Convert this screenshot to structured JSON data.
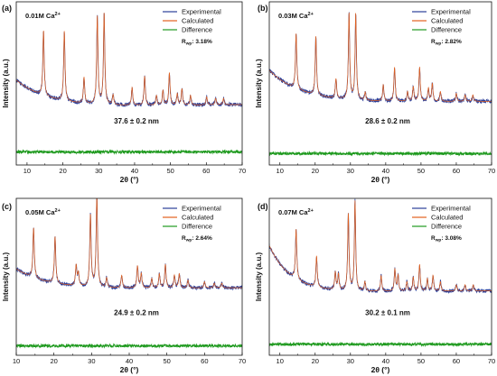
{
  "colors": {
    "experimental": "#2c3f99",
    "calculated": "#e2621f",
    "difference": "#1f9a1f",
    "axis": "#111111"
  },
  "chart_data": [
    {
      "type": "line",
      "panel": "(a)",
      "concentration": "0.01M Ca",
      "concentration_sup": "2+",
      "rwp_label": "R",
      "rwp_sub": "wp",
      "rwp_value": ": 3.18%",
      "size_label": "37.6 ± 0.2 nm",
      "xlabel": "2θ (°)",
      "ylabel": "Intensity (a.u.)",
      "xlim": [
        7,
        70
      ],
      "xticks": [
        10,
        20,
        30,
        40,
        50,
        60,
        70
      ],
      "ylim": [
        0,
        100
      ],
      "legend_position": "top-right",
      "series": [
        {
          "name": "Experimental"
        },
        {
          "name": "Calculated"
        },
        {
          "name": "Difference"
        }
      ],
      "background": {
        "start": 52,
        "tau": 9,
        "floor": 35,
        "end_bump": 2
      },
      "difference_level": 8,
      "peaks": [
        [
          14.6,
          40
        ],
        [
          20.4,
          43
        ],
        [
          25.9,
          16
        ],
        [
          29.6,
          54
        ],
        [
          31.5,
          56
        ],
        [
          34.0,
          6
        ],
        [
          39.3,
          11
        ],
        [
          42.8,
          18
        ],
        [
          46.1,
          6
        ],
        [
          47.9,
          9
        ],
        [
          49.7,
          20
        ],
        [
          51.9,
          7
        ],
        [
          53.2,
          10
        ],
        [
          55.6,
          6
        ],
        [
          60.1,
          5
        ],
        [
          62.6,
          4
        ],
        [
          64.8,
          4
        ]
      ]
    },
    {
      "type": "line",
      "panel": "(b)",
      "concentration": "0.03M Ca",
      "concentration_sup": "2+",
      "rwp_label": "R",
      "rwp_sub": "wp",
      "rwp_value": ": 2.82%",
      "size_label": "28.6 ± 0.2 nm",
      "xlabel": "2θ (°)",
      "ylabel": "Intensity (a.u.)",
      "xlim": [
        7,
        70
      ],
      "xticks": [
        10,
        20,
        30,
        40,
        50,
        60,
        70
      ],
      "ylim": [
        0,
        100
      ],
      "legend_position": "top-right",
      "series": [
        {
          "name": "Experimental"
        },
        {
          "name": "Calculated"
        },
        {
          "name": "Difference"
        }
      ],
      "background": {
        "start": 58,
        "tau": 9,
        "floor": 38,
        "end_bump": 1
      },
      "difference_level": 7,
      "peaks": [
        [
          14.6,
          34
        ],
        [
          20.2,
          36
        ],
        [
          25.9,
          12
        ],
        [
          29.6,
          53
        ],
        [
          31.5,
          53
        ],
        [
          34.2,
          5
        ],
        [
          39.3,
          10
        ],
        [
          42.5,
          21
        ],
        [
          46.2,
          6
        ],
        [
          47.8,
          9
        ],
        [
          49.6,
          21
        ],
        [
          52.1,
          8
        ],
        [
          53.2,
          11
        ],
        [
          55.5,
          6
        ],
        [
          60.0,
          5
        ],
        [
          62.5,
          4
        ],
        [
          64.7,
          4
        ]
      ]
    },
    {
      "type": "line",
      "panel": "(c)",
      "concentration": "0.05M Ca",
      "concentration_sup": "2+",
      "rwp_label": "R",
      "rwp_sub": "wp",
      "rwp_value": ": 2.64%",
      "size_label": "24.9 ± 0.2 nm",
      "xlabel": "2θ (°)",
      "ylabel": "Intensity (a.u.)",
      "xlim": [
        10,
        70
      ],
      "xticks": [
        10,
        20,
        30,
        40,
        50,
        60,
        70
      ],
      "ylim": [
        0,
        100
      ],
      "legend_position": "top-right",
      "series": [
        {
          "name": "Experimental"
        },
        {
          "name": "Calculated"
        },
        {
          "name": "Difference"
        }
      ],
      "background": {
        "start": 55,
        "tau": 8,
        "floor": 42,
        "end_bump": 1
      },
      "difference_level": 6,
      "peaks": [
        [
          14.6,
          32
        ],
        [
          20.3,
          30
        ],
        [
          25.9,
          13
        ],
        [
          26.5,
          8
        ],
        [
          29.7,
          46
        ],
        [
          31.4,
          58
        ],
        [
          34.0,
          6
        ],
        [
          38.0,
          8
        ],
        [
          42.2,
          14
        ],
        [
          43.2,
          9
        ],
        [
          46.0,
          6
        ],
        [
          48.0,
          9
        ],
        [
          49.6,
          15
        ],
        [
          52.0,
          8
        ],
        [
          53.3,
          9
        ],
        [
          55.6,
          5
        ],
        [
          60.0,
          4
        ],
        [
          62.6,
          3
        ],
        [
          64.6,
          3
        ]
      ]
    },
    {
      "type": "line",
      "panel": "(d)",
      "concentration": "0.07M Ca",
      "concentration_sup": "2+",
      "rwp_label": "R",
      "rwp_sub": "wp",
      "rwp_value": ": 3.08%",
      "size_label": "30.2  ± 0.1 nm",
      "xlabel": "2θ (°)",
      "ylabel": "Intensity (a.u.)",
      "xlim": [
        7,
        70
      ],
      "xticks": [
        10,
        20,
        30,
        40,
        50,
        60,
        70
      ],
      "ylim": [
        0,
        100
      ],
      "legend_position": "top-right",
      "series": [
        {
          "name": "Experimental"
        },
        {
          "name": "Calculated"
        },
        {
          "name": "Difference"
        }
      ],
      "background": {
        "start": 70,
        "tau": 6,
        "floor": 40,
        "end_bump": 1
      },
      "difference_level": 7,
      "peaks": [
        [
          14.6,
          32
        ],
        [
          20.4,
          20
        ],
        [
          25.7,
          11
        ],
        [
          26.6,
          10
        ],
        [
          29.4,
          49
        ],
        [
          31.3,
          57
        ],
        [
          34.1,
          6
        ],
        [
          38.7,
          10
        ],
        [
          42.6,
          14
        ],
        [
          43.5,
          10
        ],
        [
          46.0,
          6
        ],
        [
          47.8,
          9
        ],
        [
          49.6,
          17
        ],
        [
          51.8,
          8
        ],
        [
          53.4,
          10
        ],
        [
          55.5,
          6
        ],
        [
          60.0,
          4
        ],
        [
          62.5,
          4
        ],
        [
          64.8,
          4
        ]
      ]
    }
  ]
}
